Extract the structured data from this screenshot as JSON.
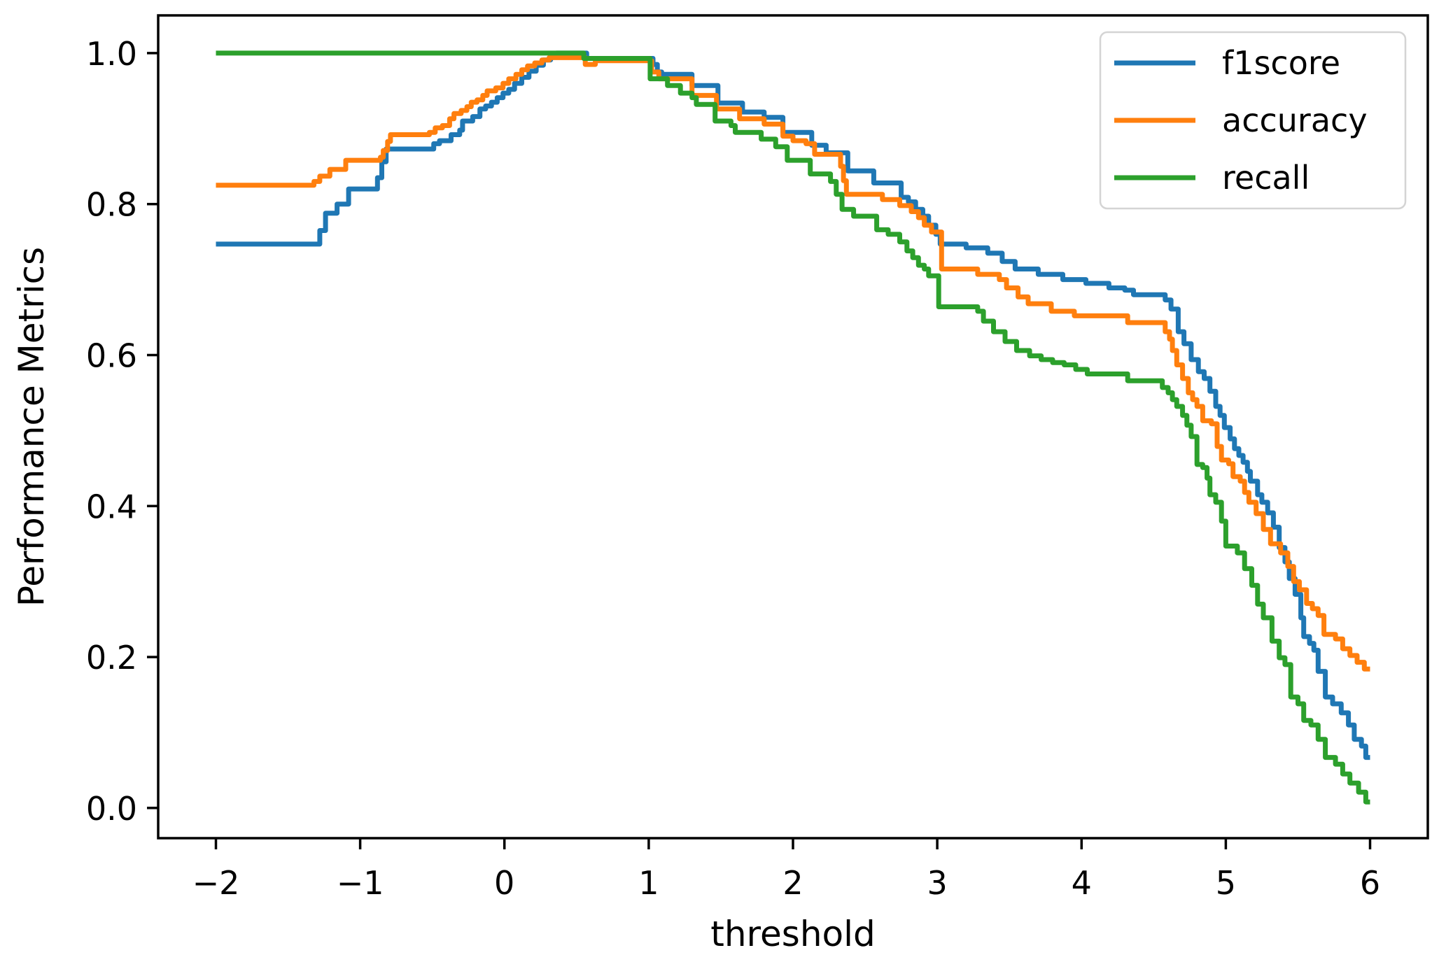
{
  "chart_data": {
    "type": "line",
    "line_style": "steps-post",
    "title": "",
    "xlabel": "threshold",
    "ylabel": "Performance Metrics",
    "xlim": [
      -2.4,
      6.4
    ],
    "ylim": [
      -0.04,
      1.05
    ],
    "grid": false,
    "legend_position": "upper right",
    "x_ticks": {
      "values": [
        -2,
        -1,
        0,
        1,
        2,
        3,
        4,
        5,
        6
      ],
      "labels": [
        "−2",
        "−1",
        "0",
        "1",
        "2",
        "3",
        "4",
        "5",
        "6"
      ]
    },
    "y_ticks": {
      "values": [
        0.0,
        0.2,
        0.4,
        0.6,
        0.8,
        1.0
      ],
      "labels": [
        "0.0",
        "0.2",
        "0.4",
        "0.6",
        "0.8",
        "1.0"
      ]
    },
    "series": [
      {
        "name": "f1score",
        "color": "#1f77b4",
        "points": [
          [
            -2.0,
            0.747
          ],
          [
            -1.28,
            0.765
          ],
          [
            -1.24,
            0.788
          ],
          [
            -1.16,
            0.8
          ],
          [
            -1.08,
            0.82
          ],
          [
            -0.88,
            0.835
          ],
          [
            -0.85,
            0.856
          ],
          [
            -0.82,
            0.873
          ],
          [
            -0.49,
            0.88
          ],
          [
            -0.45,
            0.884
          ],
          [
            -0.37,
            0.892
          ],
          [
            -0.31,
            0.898
          ],
          [
            -0.29,
            0.91
          ],
          [
            -0.22,
            0.916
          ],
          [
            -0.17,
            0.926
          ],
          [
            -0.13,
            0.93
          ],
          [
            -0.09,
            0.935
          ],
          [
            -0.05,
            0.941
          ],
          [
            -0.01,
            0.947
          ],
          [
            0.03,
            0.952
          ],
          [
            0.07,
            0.96
          ],
          [
            0.12,
            0.968
          ],
          [
            0.17,
            0.976
          ],
          [
            0.22,
            0.984
          ],
          [
            0.27,
            0.991
          ],
          [
            0.32,
            0.996
          ],
          [
            0.36,
            1.0
          ],
          [
            0.57,
            0.993
          ],
          [
            1.03,
            0.985
          ],
          [
            1.06,
            0.975
          ],
          [
            1.09,
            0.972
          ],
          [
            1.3,
            0.957
          ],
          [
            1.48,
            0.934
          ],
          [
            1.65,
            0.922
          ],
          [
            1.8,
            0.915
          ],
          [
            1.93,
            0.895
          ],
          [
            2.13,
            0.878
          ],
          [
            2.23,
            0.868
          ],
          [
            2.38,
            0.844
          ],
          [
            2.56,
            0.828
          ],
          [
            2.75,
            0.809
          ],
          [
            2.8,
            0.803
          ],
          [
            2.85,
            0.793
          ],
          [
            2.9,
            0.784
          ],
          [
            2.94,
            0.772
          ],
          [
            2.99,
            0.76
          ],
          [
            3.02,
            0.747
          ],
          [
            3.2,
            0.742
          ],
          [
            3.35,
            0.735
          ],
          [
            3.45,
            0.724
          ],
          [
            3.54,
            0.714
          ],
          [
            3.7,
            0.707
          ],
          [
            3.87,
            0.7
          ],
          [
            4.03,
            0.695
          ],
          [
            4.19,
            0.689
          ],
          [
            4.3,
            0.686
          ],
          [
            4.36,
            0.68
          ],
          [
            4.58,
            0.673
          ],
          [
            4.62,
            0.661
          ],
          [
            4.67,
            0.631
          ],
          [
            4.71,
            0.615
          ],
          [
            4.76,
            0.594
          ],
          [
            4.81,
            0.578
          ],
          [
            4.85,
            0.569
          ],
          [
            4.89,
            0.552
          ],
          [
            4.93,
            0.532
          ],
          [
            4.96,
            0.52
          ],
          [
            4.99,
            0.504
          ],
          [
            5.03,
            0.489
          ],
          [
            5.06,
            0.476
          ],
          [
            5.09,
            0.467
          ],
          [
            5.12,
            0.458
          ],
          [
            5.15,
            0.446
          ],
          [
            5.17,
            0.433
          ],
          [
            5.22,
            0.415
          ],
          [
            5.25,
            0.405
          ],
          [
            5.29,
            0.391
          ],
          [
            5.33,
            0.372
          ],
          [
            5.37,
            0.345
          ],
          [
            5.41,
            0.326
          ],
          [
            5.44,
            0.304
          ],
          [
            5.48,
            0.283
          ],
          [
            5.52,
            0.252
          ],
          [
            5.54,
            0.227
          ],
          [
            5.58,
            0.218
          ],
          [
            5.61,
            0.209
          ],
          [
            5.64,
            0.181
          ],
          [
            5.69,
            0.147
          ],
          [
            5.74,
            0.138
          ],
          [
            5.8,
            0.126
          ],
          [
            5.85,
            0.11
          ],
          [
            5.89,
            0.091
          ],
          [
            5.94,
            0.082
          ],
          [
            5.97,
            0.067
          ],
          [
            6.0,
            0.067
          ]
        ]
      },
      {
        "name": "accuracy",
        "color": "#ff7f0e",
        "points": [
          [
            -2.0,
            0.825
          ],
          [
            -1.32,
            0.83
          ],
          [
            -1.28,
            0.837
          ],
          [
            -1.21,
            0.846
          ],
          [
            -1.1,
            0.858
          ],
          [
            -0.86,
            0.862
          ],
          [
            -0.84,
            0.871
          ],
          [
            -0.81,
            0.883
          ],
          [
            -0.79,
            0.892
          ],
          [
            -0.52,
            0.895
          ],
          [
            -0.48,
            0.901
          ],
          [
            -0.43,
            0.904
          ],
          [
            -0.38,
            0.913
          ],
          [
            -0.35,
            0.92
          ],
          [
            -0.3,
            0.924
          ],
          [
            -0.26,
            0.929
          ],
          [
            -0.23,
            0.935
          ],
          [
            -0.19,
            0.938
          ],
          [
            -0.15,
            0.944
          ],
          [
            -0.12,
            0.95
          ],
          [
            -0.06,
            0.954
          ],
          [
            -0.01,
            0.96
          ],
          [
            0.03,
            0.966
          ],
          [
            0.08,
            0.972
          ],
          [
            0.12,
            0.978
          ],
          [
            0.16,
            0.983
          ],
          [
            0.21,
            0.987
          ],
          [
            0.26,
            0.991
          ],
          [
            0.31,
            0.994
          ],
          [
            0.56,
            0.985
          ],
          [
            0.63,
            0.99
          ],
          [
            1.02,
            0.975
          ],
          [
            1.07,
            0.966
          ],
          [
            1.3,
            0.944
          ],
          [
            1.47,
            0.926
          ],
          [
            1.63,
            0.913
          ],
          [
            1.8,
            0.906
          ],
          [
            1.93,
            0.89
          ],
          [
            2.0,
            0.884
          ],
          [
            2.09,
            0.88
          ],
          [
            2.15,
            0.866
          ],
          [
            2.33,
            0.85
          ],
          [
            2.35,
            0.831
          ],
          [
            2.37,
            0.813
          ],
          [
            2.62,
            0.806
          ],
          [
            2.74,
            0.798
          ],
          [
            2.82,
            0.79
          ],
          [
            2.87,
            0.782
          ],
          [
            2.91,
            0.772
          ],
          [
            2.96,
            0.763
          ],
          [
            3.03,
            0.714
          ],
          [
            3.28,
            0.707
          ],
          [
            3.43,
            0.7
          ],
          [
            3.48,
            0.689
          ],
          [
            3.56,
            0.677
          ],
          [
            3.63,
            0.668
          ],
          [
            3.79,
            0.658
          ],
          [
            3.95,
            0.652
          ],
          [
            4.32,
            0.643
          ],
          [
            4.58,
            0.631
          ],
          [
            4.61,
            0.621
          ],
          [
            4.63,
            0.606
          ],
          [
            4.66,
            0.587
          ],
          [
            4.7,
            0.569
          ],
          [
            4.74,
            0.55
          ],
          [
            4.77,
            0.541
          ],
          [
            4.8,
            0.532
          ],
          [
            4.84,
            0.513
          ],
          [
            4.9,
            0.509
          ],
          [
            4.94,
            0.479
          ],
          [
            4.97,
            0.461
          ],
          [
            5.02,
            0.456
          ],
          [
            5.05,
            0.439
          ],
          [
            5.1,
            0.433
          ],
          [
            5.13,
            0.418
          ],
          [
            5.16,
            0.405
          ],
          [
            5.21,
            0.39
          ],
          [
            5.26,
            0.369
          ],
          [
            5.31,
            0.35
          ],
          [
            5.38,
            0.338
          ],
          [
            5.43,
            0.32
          ],
          [
            5.47,
            0.3
          ],
          [
            5.51,
            0.289
          ],
          [
            5.56,
            0.271
          ],
          [
            5.6,
            0.264
          ],
          [
            5.64,
            0.255
          ],
          [
            5.68,
            0.23
          ],
          [
            5.76,
            0.224
          ],
          [
            5.81,
            0.211
          ],
          [
            5.86,
            0.202
          ],
          [
            5.91,
            0.193
          ],
          [
            5.96,
            0.184
          ],
          [
            6.0,
            0.184
          ]
        ]
      },
      {
        "name": "recall",
        "color": "#2ca02c",
        "points": [
          [
            -2.0,
            1.0
          ],
          [
            0.55,
            0.993
          ],
          [
            1.01,
            0.966
          ],
          [
            1.13,
            0.957
          ],
          [
            1.22,
            0.947
          ],
          [
            1.3,
            0.941
          ],
          [
            1.33,
            0.932
          ],
          [
            1.46,
            0.91
          ],
          [
            1.57,
            0.904
          ],
          [
            1.6,
            0.895
          ],
          [
            1.78,
            0.886
          ],
          [
            1.88,
            0.876
          ],
          [
            1.96,
            0.858
          ],
          [
            2.12,
            0.84
          ],
          [
            2.26,
            0.83
          ],
          [
            2.3,
            0.813
          ],
          [
            2.34,
            0.793
          ],
          [
            2.42,
            0.784
          ],
          [
            2.58,
            0.766
          ],
          [
            2.66,
            0.76
          ],
          [
            2.74,
            0.75
          ],
          [
            2.79,
            0.738
          ],
          [
            2.83,
            0.729
          ],
          [
            2.87,
            0.719
          ],
          [
            2.91,
            0.714
          ],
          [
            2.94,
            0.705
          ],
          [
            3.01,
            0.664
          ],
          [
            3.28,
            0.658
          ],
          [
            3.32,
            0.645
          ],
          [
            3.39,
            0.631
          ],
          [
            3.47,
            0.618
          ],
          [
            3.55,
            0.606
          ],
          [
            3.64,
            0.599
          ],
          [
            3.72,
            0.594
          ],
          [
            3.8,
            0.59
          ],
          [
            3.88,
            0.587
          ],
          [
            3.96,
            0.581
          ],
          [
            4.04,
            0.575
          ],
          [
            4.32,
            0.566
          ],
          [
            4.56,
            0.557
          ],
          [
            4.6,
            0.55
          ],
          [
            4.63,
            0.541
          ],
          [
            4.66,
            0.532
          ],
          [
            4.7,
            0.52
          ],
          [
            4.73,
            0.507
          ],
          [
            4.76,
            0.492
          ],
          [
            4.8,
            0.455
          ],
          [
            4.84,
            0.451
          ],
          [
            4.87,
            0.437
          ],
          [
            4.89,
            0.415
          ],
          [
            4.93,
            0.405
          ],
          [
            4.97,
            0.38
          ],
          [
            5.0,
            0.347
          ],
          [
            5.08,
            0.338
          ],
          [
            5.13,
            0.317
          ],
          [
            5.18,
            0.295
          ],
          [
            5.22,
            0.27
          ],
          [
            5.26,
            0.252
          ],
          [
            5.32,
            0.221
          ],
          [
            5.37,
            0.199
          ],
          [
            5.41,
            0.19
          ],
          [
            5.45,
            0.147
          ],
          [
            5.5,
            0.138
          ],
          [
            5.54,
            0.116
          ],
          [
            5.59,
            0.11
          ],
          [
            5.64,
            0.091
          ],
          [
            5.69,
            0.067
          ],
          [
            5.76,
            0.058
          ],
          [
            5.81,
            0.045
          ],
          [
            5.86,
            0.033
          ],
          [
            5.92,
            0.021
          ],
          [
            5.97,
            0.008
          ],
          [
            6.0,
            0.008
          ]
        ]
      }
    ]
  }
}
